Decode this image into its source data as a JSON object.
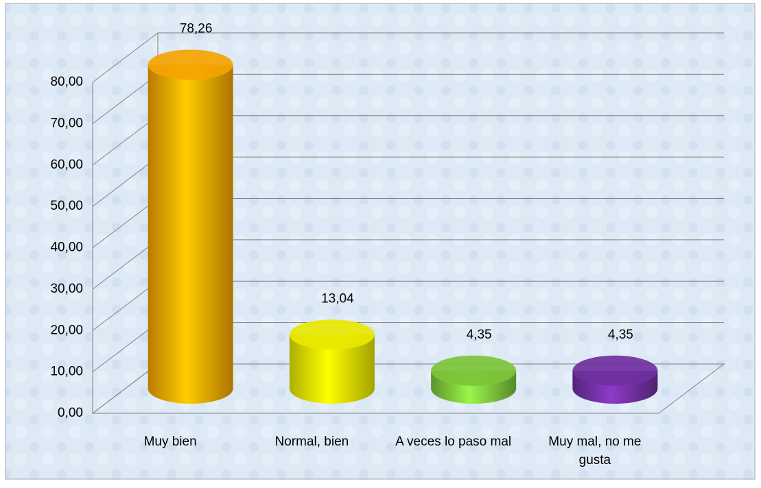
{
  "chart_data": {
    "type": "bar3d",
    "categories": [
      "Muy bien",
      "Normal, bien",
      "A veces lo paso mal",
      "Muy mal, no me gusta"
    ],
    "values": [
      78.26,
      13.04,
      4.35,
      4.35
    ],
    "value_labels": [
      "78,26",
      "13,04",
      "4,35",
      "4,35"
    ],
    "colors": [
      "#f5a400",
      "#e8e800",
      "#7cc43a",
      "#7030a0"
    ],
    "ylim": [
      0,
      80
    ],
    "yticks": [
      {
        "value": 0,
        "label": "0,00"
      },
      {
        "value": 10,
        "label": "10,00"
      },
      {
        "value": 20,
        "label": "20,00"
      },
      {
        "value": 30,
        "label": "30,00"
      },
      {
        "value": 40,
        "label": "40,00"
      },
      {
        "value": 50,
        "label": "50,00"
      },
      {
        "value": 60,
        "label": "60,00"
      },
      {
        "value": 70,
        "label": "70,00"
      },
      {
        "value": 80,
        "label": "80,00"
      }
    ],
    "grid": true
  }
}
